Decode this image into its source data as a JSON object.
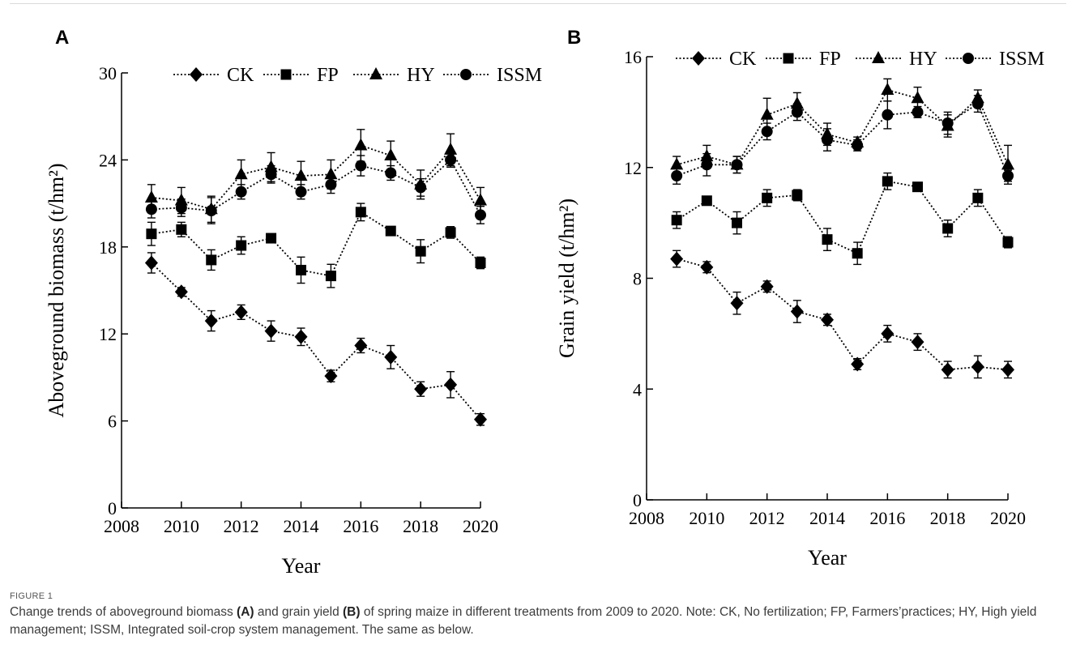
{
  "figure": {
    "label": "FIGURE 1",
    "caption_parts": [
      {
        "text": "Change trends of aboveground biomass ",
        "bold": false
      },
      {
        "text": "(A)",
        "bold": true
      },
      {
        "text": " and grain yield ",
        "bold": false
      },
      {
        "text": "(B)",
        "bold": true
      },
      {
        "text": " of spring maize in different treatments from 2009 to 2020. Note: CK, No fertilization; FP, Farmers’practices; HY, High yield management; ISSM, Integrated soil-crop system management. The same as below.",
        "bold": false
      }
    ]
  },
  "chart_data": [
    {
      "panel": "A",
      "type": "line",
      "xlabel": "Year",
      "ylabel": "Aboveground biomass (t/hm²)",
      "xlim": [
        2008,
        2020
      ],
      "xticks": [
        2008,
        2010,
        2012,
        2014,
        2016,
        2018,
        2020
      ],
      "ylim": [
        0,
        30
      ],
      "yticks": [
        0,
        6,
        12,
        18,
        24,
        30
      ],
      "grid": false,
      "legend": "top",
      "x": [
        2009,
        2010,
        2011,
        2012,
        2013,
        2014,
        2015,
        2016,
        2017,
        2018,
        2019,
        2020
      ],
      "series": [
        {
          "name": "CK",
          "marker": "diamond",
          "values": [
            16.9,
            14.9,
            12.9,
            13.5,
            12.2,
            11.8,
            9.1,
            11.2,
            10.4,
            8.2,
            8.5,
            6.1
          ],
          "errors": [
            0.7,
            0.3,
            0.7,
            0.5,
            0.7,
            0.6,
            0.4,
            0.5,
            0.8,
            0.5,
            0.9,
            0.4
          ]
        },
        {
          "name": "FP",
          "marker": "square",
          "values": [
            18.9,
            19.2,
            17.1,
            18.1,
            18.6,
            16.4,
            16.0,
            20.4,
            19.1,
            17.7,
            19.0,
            16.9
          ],
          "errors": [
            0.8,
            0.5,
            0.7,
            0.6,
            0.3,
            0.9,
            0.8,
            0.6,
            0.3,
            0.8,
            0.4,
            0.4
          ]
        },
        {
          "name": "HY",
          "marker": "triangle",
          "values": [
            21.4,
            21.2,
            20.6,
            23.0,
            23.5,
            22.9,
            23.0,
            25.0,
            24.3,
            22.3,
            24.7,
            21.2
          ],
          "errors": [
            0.9,
            0.9,
            0.9,
            1.0,
            1.0,
            1.0,
            1.0,
            1.1,
            1.0,
            1.0,
            1.1,
            0.9
          ]
        },
        {
          "name": "ISSM",
          "marker": "circle",
          "values": [
            20.6,
            20.7,
            20.5,
            21.8,
            23.0,
            21.8,
            22.3,
            23.6,
            23.1,
            22.1,
            24.0,
            20.2
          ],
          "errors": [
            0.6,
            0.6,
            0.9,
            0.5,
            0.6,
            0.5,
            0.6,
            0.7,
            0.5,
            0.6,
            0.5,
            0.6
          ]
        }
      ]
    },
    {
      "panel": "B",
      "type": "line",
      "xlabel": "Year",
      "ylabel": "Grain yield (t/hm²)",
      "xlim": [
        2008,
        2020
      ],
      "xticks": [
        2008,
        2010,
        2012,
        2014,
        2016,
        2018,
        2020
      ],
      "ylim": [
        0,
        16
      ],
      "yticks": [
        0,
        4,
        8,
        12,
        16
      ],
      "grid": false,
      "legend": "top",
      "x": [
        2009,
        2010,
        2011,
        2012,
        2013,
        2014,
        2015,
        2016,
        2017,
        2018,
        2019,
        2020
      ],
      "series": [
        {
          "name": "CK",
          "marker": "diamond",
          "values": [
            8.7,
            8.4,
            7.1,
            7.7,
            6.8,
            6.5,
            4.9,
            6.0,
            5.7,
            4.7,
            4.8,
            4.7
          ],
          "errors": [
            0.3,
            0.2,
            0.4,
            0.2,
            0.4,
            0.2,
            0.2,
            0.3,
            0.3,
            0.3,
            0.4,
            0.3
          ]
        },
        {
          "name": "FP",
          "marker": "square",
          "values": [
            10.1,
            10.8,
            10.0,
            10.9,
            11.0,
            9.4,
            8.9,
            11.5,
            11.3,
            9.8,
            10.9,
            9.3
          ],
          "errors": [
            0.3,
            0.1,
            0.4,
            0.3,
            0.2,
            0.4,
            0.4,
            0.3,
            0.1,
            0.3,
            0.3,
            0.2
          ]
        },
        {
          "name": "HY",
          "marker": "triangle",
          "values": [
            12.1,
            12.4,
            12.1,
            13.9,
            14.3,
            13.2,
            12.9,
            14.8,
            14.5,
            13.5,
            14.5,
            12.1
          ],
          "errors": [
            0.3,
            0.4,
            0.3,
            0.6,
            0.4,
            0.4,
            0.2,
            0.4,
            0.4,
            0.4,
            0.3,
            0.7
          ]
        },
        {
          "name": "ISSM",
          "marker": "circle",
          "values": [
            11.7,
            12.1,
            12.1,
            13.3,
            14.0,
            13.0,
            12.8,
            13.9,
            14.0,
            13.6,
            14.3,
            11.7
          ],
          "errors": [
            0.3,
            0.4,
            0.3,
            0.3,
            0.3,
            0.4,
            0.2,
            0.5,
            0.2,
            0.4,
            0.3,
            0.2
          ]
        }
      ]
    }
  ]
}
